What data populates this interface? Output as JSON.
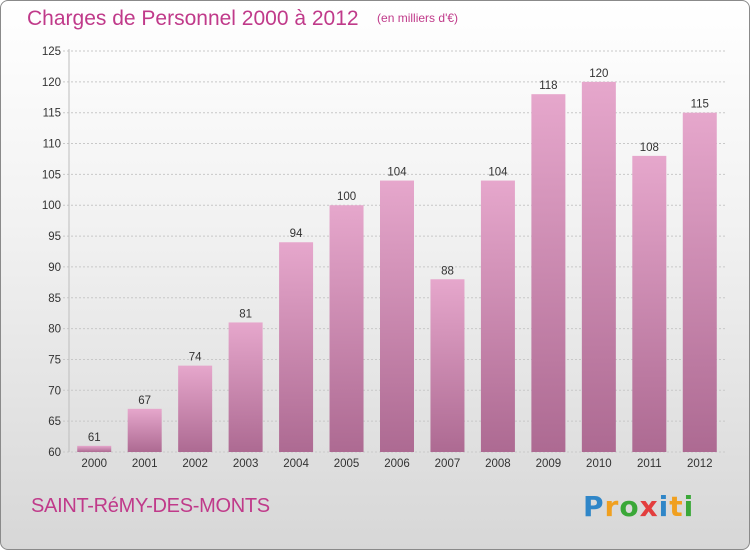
{
  "header": {
    "title": "Charges de Personnel 2000 à 2012",
    "subtitle": "(en milliers d'€)"
  },
  "footer": {
    "town": "SAINT-RéMY-DES-MONTS",
    "brand": "Proxiti"
  },
  "colors": {
    "title": "#c03a8a",
    "bar_top": "#e6a7cc",
    "bar_bottom": "#ad6a92",
    "grid": "#c8c8c8"
  },
  "chart_data": {
    "type": "bar",
    "title": "Charges de Personnel 2000 à 2012",
    "subtitle": "(en milliers d'€)",
    "categories": [
      "2000",
      "2001",
      "2002",
      "2003",
      "2004",
      "2005",
      "2006",
      "2007",
      "2008",
      "2009",
      "2010",
      "2011",
      "2012"
    ],
    "values": [
      61,
      67,
      74,
      81,
      94,
      100,
      104,
      88,
      104,
      118,
      120,
      108,
      115
    ],
    "ylim": [
      60,
      125
    ],
    "yticks": [
      60,
      65,
      70,
      75,
      80,
      85,
      90,
      95,
      100,
      105,
      110,
      115,
      120,
      125
    ],
    "grid": true,
    "legend": "none"
  }
}
